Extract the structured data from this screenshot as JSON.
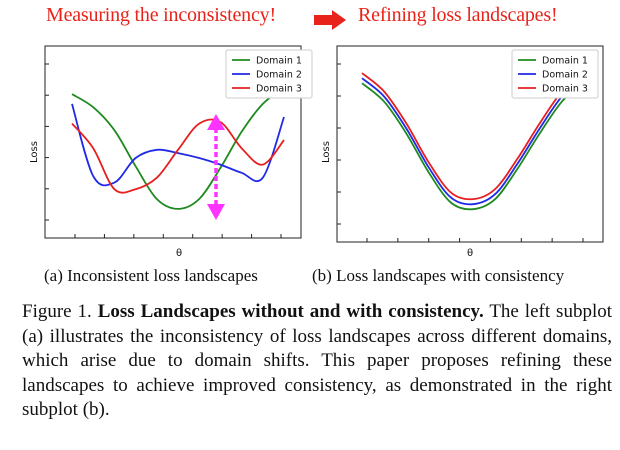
{
  "labels": {
    "left": "Measuring the inconsistency!",
    "right": "Refining loss landscapes!"
  },
  "colors": {
    "domain1": "#1f8a1f",
    "domain2": "#1f2ae6",
    "domain3": "#e61f1f",
    "accent_red": "#e8231a",
    "arrow_magenta": "#ff33ff"
  },
  "chart_data": [
    {
      "type": "line",
      "xlabel": "θ",
      "ylabel": "Loss",
      "legend_position": "top-right",
      "x": [
        0,
        0.1,
        0.2,
        0.3,
        0.4,
        0.5,
        0.6,
        0.7,
        0.8,
        0.9,
        1.0
      ],
      "series": [
        {
          "name": "Domain 1",
          "values": [
            0.78,
            0.7,
            0.56,
            0.34,
            0.14,
            0.08,
            0.14,
            0.33,
            0.55,
            0.72,
            0.82
          ]
        },
        {
          "name": "Domain 2",
          "values": [
            0.72,
            0.28,
            0.24,
            0.39,
            0.44,
            0.42,
            0.39,
            0.35,
            0.3,
            0.27,
            0.64
          ]
        },
        {
          "name": "Domain 3",
          "values": [
            0.6,
            0.45,
            0.2,
            0.2,
            0.27,
            0.44,
            0.6,
            0.61,
            0.45,
            0.35,
            0.5
          ]
        }
      ],
      "annotation": "double-headed vertical arrow indicating loss gap between domains"
    },
    {
      "type": "line",
      "xlabel": "θ",
      "ylabel": "Loss",
      "legend_position": "top-right",
      "x": [
        0,
        0.1,
        0.2,
        0.3,
        0.4,
        0.5,
        0.6,
        0.7,
        0.8,
        0.9,
        1.0
      ],
      "series": [
        {
          "name": "Domain 1",
          "values": [
            0.85,
            0.74,
            0.55,
            0.32,
            0.14,
            0.1,
            0.16,
            0.34,
            0.55,
            0.74,
            0.86
          ]
        },
        {
          "name": "Domain 2",
          "values": [
            0.88,
            0.77,
            0.58,
            0.35,
            0.17,
            0.13,
            0.19,
            0.37,
            0.58,
            0.77,
            0.89
          ]
        },
        {
          "name": "Domain 3",
          "values": [
            0.91,
            0.8,
            0.61,
            0.38,
            0.2,
            0.16,
            0.22,
            0.4,
            0.61,
            0.8,
            0.92
          ]
        }
      ]
    }
  ],
  "subcaptions": {
    "a": "(a) Inconsistent loss landscapes",
    "b": "(b) Loss landscapes with consistency"
  },
  "caption": {
    "prefix": "Figure 1. ",
    "title": "Loss Landscapes without and with consistency.",
    "body": " The left subplot (a) illustrates the inconsistency of loss landscapes across different domains, which arise due to domain shifts. This paper proposes refining these landscapes to achieve improved consistency, as demonstrated in the right subplot (b)."
  }
}
